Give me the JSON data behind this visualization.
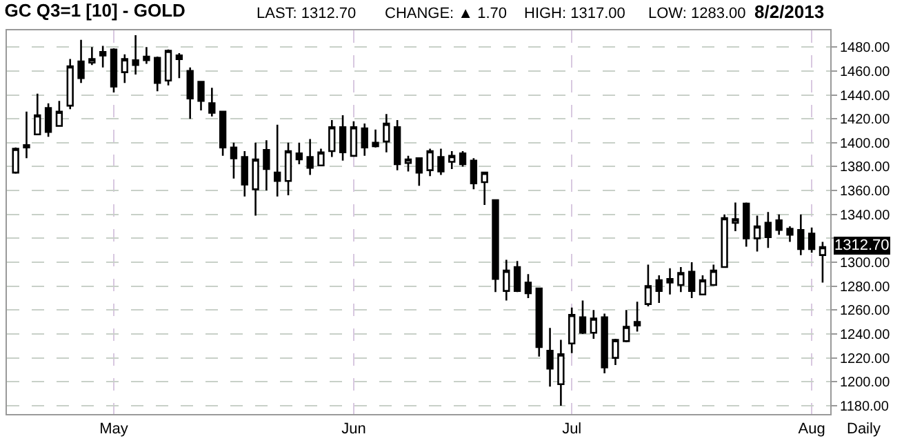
{
  "chart_data": {
    "type": "candlestick",
    "title": "GC Q3=1 [10] - GOLD",
    "annotations": [
      "LAST: 1312.70",
      "CHANGE: ▲ 1.70",
      "HIGH: 1317.00",
      "LOW: 1283.00",
      "8/2/2013",
      "Daily",
      "1312.70"
    ],
    "categories": [
      null,
      null,
      null,
      null,
      null,
      null,
      null,
      null,
      null,
      "May",
      null,
      null,
      null,
      null,
      null,
      null,
      null,
      null,
      null,
      null,
      null,
      null,
      null,
      null,
      null,
      null,
      null,
      null,
      null,
      null,
      null,
      "Jun",
      null,
      null,
      null,
      null,
      null,
      null,
      null,
      null,
      null,
      null,
      null,
      null,
      null,
      null,
      null,
      null,
      null,
      null,
      null,
      "Jul",
      null,
      null,
      null,
      null,
      null,
      null,
      null,
      null,
      null,
      null,
      null,
      null,
      null,
      null,
      null,
      null,
      null,
      null,
      null,
      null,
      null,
      "Aug",
      null
    ],
    "ohlc": [
      [
        1375,
        1396,
        1374,
        1395
      ],
      [
        1396,
        1426,
        1387,
        1398
      ],
      [
        1407,
        1441,
        1407,
        1423
      ],
      [
        1429,
        1433,
        1405,
        1409
      ],
      [
        1414,
        1435,
        1414,
        1426
      ],
      [
        1431,
        1470,
        1428,
        1464
      ],
      [
        1468,
        1486,
        1450,
        1454
      ],
      [
        1467,
        1480,
        1465,
        1470
      ],
      [
        1476,
        1481,
        1463,
        1473
      ],
      [
        1478,
        1479,
        1442,
        1447
      ],
      [
        1459,
        1474,
        1450,
        1470
      ],
      [
        1469,
        1490,
        1457,
        1465
      ],
      [
        1472,
        1480,
        1466,
        1469
      ],
      [
        1471,
        1472,
        1443,
        1450
      ],
      [
        1452,
        1478,
        1448,
        1477
      ],
      [
        1473,
        1475,
        1454,
        1470
      ],
      [
        1460,
        1463,
        1420,
        1437
      ],
      [
        1451,
        1451,
        1427,
        1435
      ],
      [
        1433,
        1446,
        1422,
        1425
      ],
      [
        1426,
        1426,
        1389,
        1396
      ],
      [
        1396,
        1400,
        1370,
        1387
      ],
      [
        1388,
        1393,
        1355,
        1365
      ],
      [
        1361,
        1400,
        1339,
        1386
      ],
      [
        1394,
        1402,
        1360,
        1378
      ],
      [
        1375,
        1415,
        1355,
        1368
      ],
      [
        1368,
        1400,
        1356,
        1393
      ],
      [
        1391,
        1400,
        1382,
        1386
      ],
      [
        1388,
        1403,
        1373,
        1379
      ],
      [
        1381,
        1395,
        1381,
        1392
      ],
      [
        1393,
        1419,
        1388,
        1413
      ],
      [
        1413,
        1423,
        1385,
        1392
      ],
      [
        1389,
        1418,
        1389,
        1413
      ],
      [
        1412,
        1416,
        1389,
        1396
      ],
      [
        1400,
        1411,
        1396,
        1397
      ],
      [
        1401,
        1424,
        1392,
        1416
      ],
      [
        1413,
        1419,
        1377,
        1382
      ],
      [
        1383,
        1389,
        1376,
        1386
      ],
      [
        1387,
        1387,
        1364,
        1375
      ],
      [
        1377,
        1395,
        1372,
        1393
      ],
      [
        1388,
        1395,
        1373,
        1376
      ],
      [
        1384,
        1393,
        1378,
        1389
      ],
      [
        1391,
        1393,
        1380,
        1382
      ],
      [
        1385,
        1387,
        1361,
        1366
      ],
      [
        1367,
        1375,
        1348,
        1375
      ],
      [
        1352,
        1352,
        1275,
        1286
      ],
      [
        1276,
        1302,
        1268,
        1293
      ],
      [
        1296,
        1301,
        1275,
        1276
      ],
      [
        1283,
        1290,
        1270,
        1274
      ],
      [
        1278,
        1278,
        1221,
        1229
      ],
      [
        1226,
        1245,
        1196,
        1211
      ],
      [
        1198,
        1235,
        1180,
        1223
      ],
      [
        1232,
        1262,
        1224,
        1256
      ],
      [
        1254,
        1268,
        1240,
        1241
      ],
      [
        1241,
        1260,
        1236,
        1253
      ],
      [
        1254,
        1257,
        1207,
        1212
      ],
      [
        1220,
        1236,
        1214,
        1235
      ],
      [
        1234,
        1260,
        1233,
        1246
      ],
      [
        1250,
        1267,
        1242,
        1247
      ],
      [
        1265,
        1298,
        1263,
        1280
      ],
      [
        1285,
        1289,
        1266,
        1276
      ],
      [
        1286,
        1295,
        1273,
        1283
      ],
      [
        1281,
        1296,
        1275,
        1291
      ],
      [
        1292,
        1300,
        1270,
        1276
      ],
      [
        1273,
        1289,
        1273,
        1285
      ],
      [
        1281,
        1298,
        1281,
        1293
      ],
      [
        1296,
        1340,
        1296,
        1337
      ],
      [
        1333,
        1350,
        1326,
        1336
      ],
      [
        1349,
        1350,
        1313,
        1320
      ],
      [
        1320,
        1339,
        1309,
        1330
      ],
      [
        1333,
        1342,
        1312,
        1321
      ],
      [
        1335,
        1340,
        1323,
        1327
      ],
      [
        1328,
        1330,
        1317,
        1323
      ],
      [
        1327,
        1340,
        1306,
        1311
      ],
      [
        1324,
        1329,
        1308,
        1311
      ],
      [
        1306,
        1317,
        1283,
        1312.7
      ]
    ],
    "color": "#000000",
    "ylim": [
      1173,
      1494
    ],
    "yticks": [
      {
        "value": 1180,
        "label": "1180.00"
      },
      {
        "value": 1200,
        "label": "1200.00"
      },
      {
        "value": 1220,
        "label": "1220.00"
      },
      {
        "value": 1240,
        "label": "1240.00"
      },
      {
        "value": 1260,
        "label": "1260.00"
      },
      {
        "value": 1280,
        "label": "1280.00"
      },
      {
        "value": 1300,
        "label": "1300.00"
      },
      {
        "value": 1320,
        "label": null
      },
      {
        "value": 1340,
        "label": "1340.00"
      },
      {
        "value": 1360,
        "label": "1360.00"
      },
      {
        "value": 1380,
        "label": "1380.00"
      },
      {
        "value": 1400,
        "label": "1400.00"
      },
      {
        "value": 1420,
        "label": "1420.00"
      },
      {
        "value": 1440,
        "label": "1440.00"
      },
      {
        "value": 1460,
        "label": "1460.00"
      },
      {
        "value": 1480,
        "label": "1480.00"
      }
    ],
    "grid": true
  }
}
